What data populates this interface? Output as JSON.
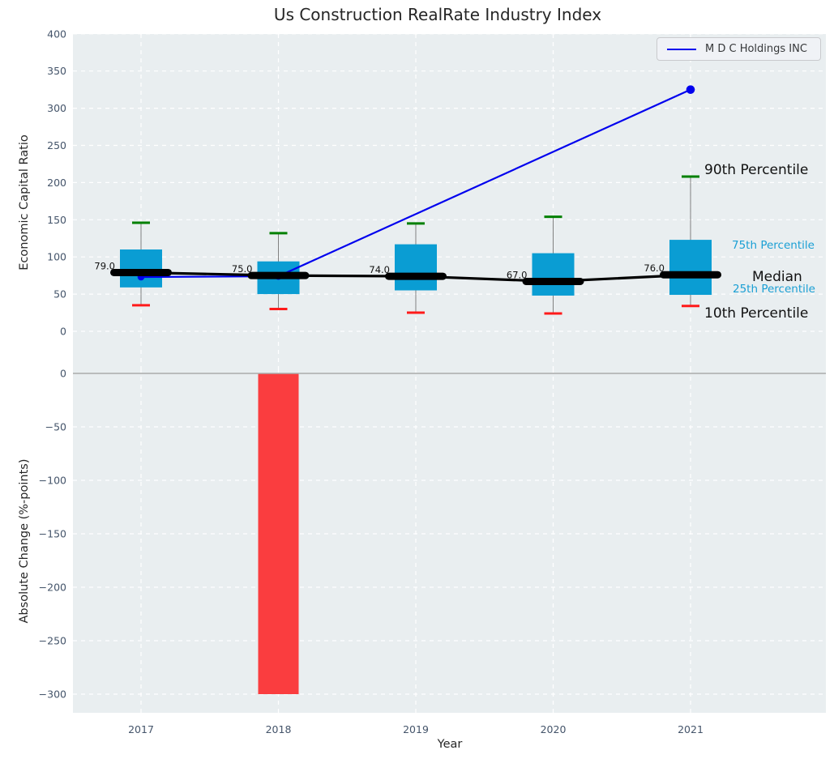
{
  "figure": {
    "title": "Us Construction RealRate Industry Index"
  },
  "colors": {
    "plot_bg": "#e9eef0",
    "grid": "#ffffff",
    "tick_color": "#44546a",
    "box_fill": "#0a9dd3",
    "whisker": "#808080",
    "p90_cap": "#008000",
    "p10_cap": "#ff1a1a",
    "median_line": "#000000",
    "company_line": "#0000ee",
    "bar_fill": "#fa3d3f",
    "zero_line": "#ababab",
    "annotation_dark": "#111111",
    "annotation_cyan": "#1a9fd4"
  },
  "chart_data": [
    {
      "type": "boxplot-with-line",
      "title": "Us Construction RealRate Industry Index",
      "ylabel": "Economic Capital Ratio",
      "ylim": [
        -50,
        400
      ],
      "yticks": [
        0,
        50,
        100,
        150,
        200,
        250,
        300,
        350,
        400
      ],
      "ytick_labels": [
        "0",
        "50",
        "100",
        "150",
        "200",
        "250",
        "300",
        "350",
        "400"
      ],
      "grid": "on",
      "categories": [
        "2017",
        "2018",
        "2019",
        "2020",
        "2021"
      ],
      "boxes": [
        {
          "year": "2017",
          "p10": 35,
          "p25": 59,
          "median": 79,
          "p75": 110,
          "p90": 146,
          "median_label": "79.0"
        },
        {
          "year": "2018",
          "p10": 30,
          "p25": 50,
          "median": 75,
          "p75": 94,
          "p90": 132,
          "median_label": "75.0"
        },
        {
          "year": "2019",
          "p10": 25,
          "p25": 55,
          "median": 74,
          "p75": 117,
          "p90": 145,
          "median_label": "74.0"
        },
        {
          "year": "2020",
          "p10": 24,
          "p25": 48,
          "median": 67,
          "p75": 105,
          "p90": 154,
          "median_label": "67.0"
        },
        {
          "year": "2021",
          "p10": 34,
          "p25": 49,
          "median": 76,
          "p75": 123,
          "p90": 208,
          "median_label": "76.0"
        }
      ],
      "series": [
        {
          "name": "M D C Holdings INC",
          "points": [
            {
              "x": "2017",
              "y": 73
            },
            {
              "x": "2018",
              "y": 74
            },
            {
              "x": "2021",
              "y": 325
            }
          ]
        }
      ],
      "legend": {
        "label": "M D C Holdings INC",
        "position": "upper right"
      },
      "annotations": {
        "p90": {
          "text": "90th Percentile",
          "color": "#111111"
        },
        "p75": {
          "text": "75th Percentile",
          "color": "#1a9fd4"
        },
        "median": {
          "text": "Median",
          "color": "#111111"
        },
        "p25": {
          "text": "25th Percentile",
          "color": "#1a9fd4"
        },
        "p10": {
          "text": "10th Percentile",
          "color": "#111111"
        }
      }
    },
    {
      "type": "bar",
      "ylabel": "Absolute Change (%-points)",
      "xlabel": "Year",
      "ylim": [
        -317,
        5
      ],
      "yticks": [
        0,
        -50,
        -100,
        -150,
        -200,
        -250,
        -300
      ],
      "ytick_labels": [
        "0",
        "−50",
        "−100",
        "−150",
        "−200",
        "−250",
        "−300"
      ],
      "grid": "on",
      "categories": [
        "2017",
        "2018",
        "2019",
        "2020",
        "2021"
      ],
      "values": [
        0,
        -300,
        0,
        0,
        0
      ]
    }
  ]
}
